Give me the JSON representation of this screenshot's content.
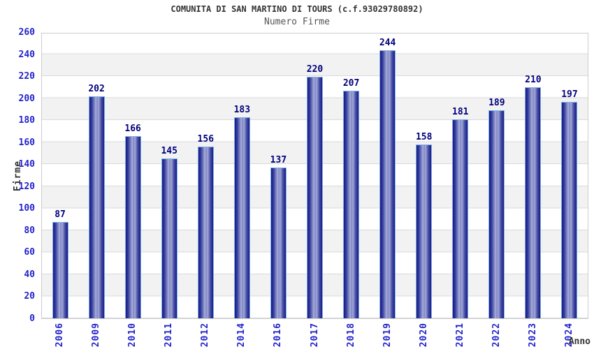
{
  "header": {
    "title": "COMUNITA DI SAN MARTINO DI TOURS (c.f.93029780892)",
    "subtitle": "Numero Firme"
  },
  "chart_data": {
    "type": "bar",
    "title": "COMUNITA DI SAN MARTINO DI TOURS (c.f.93029780892)",
    "subtitle": "Numero Firme",
    "xlabel": "Anno",
    "ylabel": "Firme",
    "categories": [
      "2006",
      "2009",
      "2010",
      "2011",
      "2012",
      "2014",
      "2016",
      "2017",
      "2018",
      "2019",
      "2020",
      "2021",
      "2022",
      "2023",
      "2024"
    ],
    "values": [
      87,
      202,
      166,
      145,
      156,
      183,
      137,
      220,
      207,
      244,
      158,
      181,
      189,
      210,
      197
    ],
    "ylim": [
      0,
      260
    ],
    "yticks": [
      0,
      20,
      40,
      60,
      80,
      100,
      120,
      140,
      160,
      180,
      200,
      220,
      240,
      260
    ],
    "grid": true,
    "legend": false,
    "band_fill_alternating": true,
    "colors": {
      "tick_label": "#2323cc",
      "value_label": "#00007d",
      "bar_border": "#7ab4e6",
      "bar_dark": "#1a1a87",
      "bar_light": "#aab0dd",
      "band_alt": "#f2f2f2",
      "grid_line": "#d9d9d9",
      "plot_border": "#cccccc",
      "title_text": "#333333",
      "subtitle_text": "#555555"
    }
  }
}
